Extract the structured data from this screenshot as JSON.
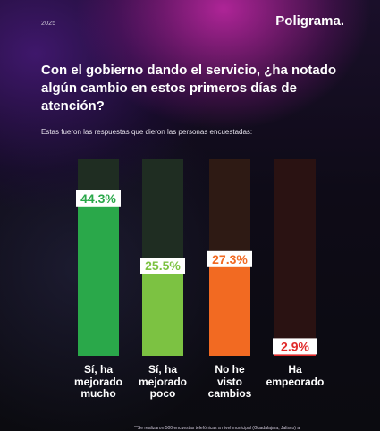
{
  "header": {
    "year": "2025",
    "logo": "Poligrama."
  },
  "colors": {
    "track_green": "#1f2d22",
    "track_brown": "#2e1a14",
    "track_red": "#2a1212"
  },
  "footnote": "**Se realizaron 500 encuestas telefónicas a nivel municipal (Guadalajara, Jalisco) a",
  "chart_data": {
    "type": "bar",
    "title": "Con el gobierno dando el servicio, ¿ha notado algún cambio en estos primeros días de atención?",
    "subtitle": "Estas fueron las respuestas que dieron las personas encuestadas:",
    "categories": [
      "Sí, ha mejorado mucho",
      "Sí, ha mejorado poco",
      "No he visto cambios",
      "Ha empeorado"
    ],
    "category_lines": [
      [
        "Sí, ha",
        "mejorado",
        "mucho"
      ],
      [
        "Sí, ha",
        "mejorado",
        "poco"
      ],
      [
        "No he",
        "visto",
        "cambios"
      ],
      [
        "Ha",
        "empeorado"
      ]
    ],
    "values": [
      44.3,
      25.5,
      27.3,
      2.9
    ],
    "value_labels": [
      "44.3%",
      "25.5%",
      "27.3%",
      "2.9%"
    ],
    "colors": [
      "#2aa84a",
      "#7cc242",
      "#f26a22",
      "#e02a2a"
    ],
    "label_colors": [
      "#2aa84a",
      "#7cc242",
      "#f26a22",
      "#e02a2a"
    ],
    "ylim": [
      0,
      55
    ],
    "xlabel": "",
    "ylabel": ""
  }
}
